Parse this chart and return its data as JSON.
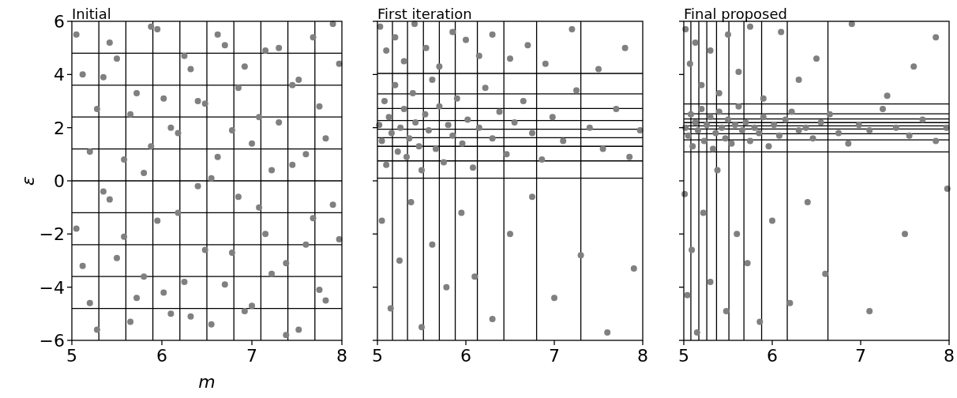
{
  "chart_data": [
    {
      "type": "scatter",
      "title": "Initial",
      "xlabel": "m",
      "ylabel": "ε",
      "color": "#808080",
      "marker": "circle",
      "grid": false,
      "xlim": [
        5,
        8
      ],
      "ylim": [
        -6,
        6
      ],
      "xticks": [
        5,
        6,
        7,
        8
      ],
      "yticks": [
        {
          "value": -6,
          "label": "−6"
        },
        {
          "value": -4,
          "label": "−4"
        },
        {
          "value": -2,
          "label": "−2"
        },
        0,
        2,
        4,
        6
      ],
      "x": [
        5.05,
        5.12,
        5.2,
        5.28,
        5.35,
        5.42,
        5.5,
        5.58,
        5.65,
        5.72,
        5.8,
        5.88,
        5.95,
        6.02,
        6.1,
        6.18,
        6.25,
        6.32,
        6.4,
        6.48,
        6.55,
        6.62,
        6.7,
        6.78,
        6.85,
        6.92,
        7.0,
        7.08,
        7.15,
        7.22,
        7.3,
        7.38,
        7.45,
        7.52,
        7.6,
        7.68,
        7.75,
        7.82,
        7.9,
        7.97,
        5.05,
        5.12,
        5.2,
        5.28,
        5.35,
        5.42,
        5.5,
        5.58,
        5.65,
        5.72,
        5.8,
        5.88,
        5.95,
        6.02,
        6.1,
        6.18,
        6.25,
        6.32,
        6.4,
        6.48,
        6.55,
        6.62,
        6.7,
        6.78,
        6.85,
        6.92,
        7.0,
        7.08,
        7.15,
        7.22,
        7.3,
        7.38,
        7.45,
        7.52,
        7.6,
        7.68,
        7.75,
        7.82,
        7.9,
        7.97
      ],
      "values": [
        5.5,
        -3.2,
        1.1,
        -5.6,
        3.9,
        -0.7,
        4.6,
        -2.1,
        2.5,
        -4.4,
        0.3,
        5.8,
        -1.5,
        3.1,
        -5.0,
        1.8,
        -3.8,
        4.2,
        -0.2,
        2.9,
        -5.4,
        0.9,
        5.1,
        -2.7,
        3.5,
        -4.9,
        1.4,
        -1.0,
        4.9,
        -3.5,
        2.2,
        -5.8,
        0.6,
        3.8,
        -2.4,
        5.4,
        -4.1,
        1.6,
        -0.9,
        4.4,
        -1.8,
        4.0,
        -4.6,
        2.7,
        -0.4,
        5.2,
        -2.9,
        0.8,
        -5.3,
        3.3,
        -3.6,
        1.3,
        5.7,
        -4.2,
        2.0,
        -1.2,
        4.7,
        -5.1,
        3.0,
        -2.6,
        0.1,
        5.5,
        -3.9,
        1.9,
        -0.6,
        4.3,
        -4.7,
        2.4,
        -2.0,
        0.4,
        5.0,
        -3.1,
        3.6,
        -5.6,
        1.0,
        -1.4,
        2.8,
        -4.5,
        5.9,
        -2.2
      ],
      "ref_lines": [
        {
          "axis": "x",
          "value": 5.3
        },
        {
          "axis": "x",
          "value": 5.6
        },
        {
          "axis": "x",
          "value": 5.9
        },
        {
          "axis": "x",
          "value": 6.2
        },
        {
          "axis": "x",
          "value": 6.5
        },
        {
          "axis": "x",
          "value": 6.8
        },
        {
          "axis": "x",
          "value": 7.1
        },
        {
          "axis": "x",
          "value": 7.4
        },
        {
          "axis": "x",
          "value": 7.7
        },
        {
          "axis": "y",
          "value": 4.8
        },
        {
          "axis": "y",
          "value": 3.6
        },
        {
          "axis": "y",
          "value": 2.4
        },
        {
          "axis": "y",
          "value": 1.2
        },
        {
          "axis": "y",
          "value": 0
        },
        {
          "axis": "y",
          "value": -1.2
        },
        {
          "axis": "y",
          "value": -2.4
        },
        {
          "axis": "y",
          "value": -3.6
        },
        {
          "axis": "y",
          "value": -4.8
        }
      ]
    },
    {
      "type": "scatter",
      "title": "First iteration",
      "color": "#808080",
      "marker": "circle",
      "grid": false,
      "tick_labels": "x",
      "xlim": [
        5,
        8
      ],
      "ylim": [
        -6,
        6
      ],
      "xticks": [
        5,
        6,
        7,
        8
      ],
      "yticks": [
        {
          "value": -6,
          "label": null
        },
        {
          "value": -4,
          "label": null
        },
        {
          "value": -2,
          "label": null
        },
        {
          "value": 0,
          "label": null
        },
        {
          "value": 2,
          "label": null
        },
        {
          "value": 4,
          "label": null
        },
        {
          "value": 6,
          "label": null
        }
      ],
      "x": [
        5.02,
        5.05,
        5.08,
        5.1,
        5.13,
        5.16,
        5.2,
        5.23,
        5.26,
        5.3,
        5.33,
        5.36,
        5.4,
        5.43,
        5.47,
        5.5,
        5.54,
        5.58,
        5.62,
        5.66,
        5.7,
        5.75,
        5.8,
        5.85,
        5.9,
        5.96,
        6.02,
        6.08,
        6.15,
        6.22,
        6.3,
        6.38,
        6.46,
        6.55,
        6.65,
        6.75,
        6.86,
        6.98,
        7.1,
        7.25,
        7.4,
        7.55,
        7.7,
        7.85,
        7.97,
        5.03,
        5.1,
        5.2,
        5.3,
        5.42,
        5.55,
        5.7,
        5.85,
        6.0,
        6.15,
        6.3,
        6.5,
        6.7,
        6.9,
        7.2,
        7.5,
        7.8,
        5.05,
        5.15,
        5.25,
        5.38,
        5.5,
        5.62,
        5.78,
        5.95,
        6.1,
        6.3,
        6.5,
        6.75,
        7.0,
        7.3,
        7.6,
        7.9
      ],
      "values": [
        2.1,
        1.5,
        3.0,
        0.6,
        2.4,
        1.8,
        3.6,
        1.1,
        2.0,
        2.7,
        0.9,
        1.6,
        3.3,
        2.2,
        1.3,
        0.4,
        2.5,
        1.9,
        3.8,
        1.2,
        2.8,
        0.7,
        2.1,
        1.7,
        3.1,
        1.4,
        2.3,
        0.5,
        2.0,
        3.5,
        1.6,
        2.6,
        1.0,
        2.2,
        3.0,
        1.8,
        0.8,
        2.4,
        1.5,
        3.4,
        2.0,
        1.2,
        2.7,
        0.9,
        1.9,
        5.8,
        4.9,
        5.4,
        4.5,
        5.9,
        5.0,
        4.3,
        5.6,
        5.3,
        4.7,
        5.5,
        4.6,
        5.1,
        4.4,
        5.7,
        4.2,
        5.0,
        -1.5,
        -4.8,
        -3.0,
        -0.8,
        -5.5,
        -2.4,
        -4.0,
        -1.2,
        -3.6,
        -5.2,
        -2.0,
        -0.6,
        -4.4,
        -2.8,
        -5.7,
        -3.3
      ],
      "ref_lines": [
        {
          "axis": "x",
          "value": 5.17
        },
        {
          "axis": "x",
          "value": 5.34
        },
        {
          "axis": "x",
          "value": 5.52
        },
        {
          "axis": "x",
          "value": 5.7
        },
        {
          "axis": "x",
          "value": 5.88
        },
        {
          "axis": "x",
          "value": 6.13
        },
        {
          "axis": "x",
          "value": 6.43
        },
        {
          "axis": "x",
          "value": 6.8
        },
        {
          "axis": "x",
          "value": 7.3
        },
        {
          "axis": "y",
          "value": 4.04
        },
        {
          "axis": "y",
          "value": 3.27
        },
        {
          "axis": "y",
          "value": 2.72
        },
        {
          "axis": "y",
          "value": 2.27
        },
        {
          "axis": "y",
          "value": 1.94
        },
        {
          "axis": "y",
          "value": 1.62
        },
        {
          "axis": "y",
          "value": 1.3
        },
        {
          "axis": "y",
          "value": 0.75
        },
        {
          "axis": "y",
          "value": 0.1
        }
      ]
    },
    {
      "type": "scatter",
      "title": "Final proposed",
      "color": "#808080",
      "marker": "circle",
      "grid": false,
      "tick_labels": "x",
      "xlim": [
        5,
        8
      ],
      "ylim": [
        -6,
        6
      ],
      "xticks": [
        5,
        6,
        7,
        8
      ],
      "yticks": [
        {
          "value": -6,
          "label": null
        },
        {
          "value": -4,
          "label": null
        },
        {
          "value": -2,
          "label": null
        },
        {
          "value": 0,
          "label": null
        },
        {
          "value": 2,
          "label": null
        },
        {
          "value": 4,
          "label": null
        },
        {
          "value": 6,
          "label": null
        }
      ],
      "x": [
        5.02,
        5.05,
        5.08,
        5.1,
        5.13,
        5.16,
        5.2,
        5.23,
        5.26,
        5.3,
        5.33,
        5.36,
        5.4,
        5.43,
        5.47,
        5.5,
        5.54,
        5.58,
        5.62,
        5.66,
        5.7,
        5.75,
        5.8,
        5.85,
        5.9,
        5.96,
        6.02,
        6.08,
        6.15,
        6.22,
        6.3,
        6.38,
        6.46,
        6.55,
        6.65,
        6.75,
        6.86,
        6.98,
        7.1,
        7.25,
        7.4,
        7.55,
        7.7,
        7.85,
        7.97,
        5.02,
        5.07,
        5.13,
        5.2,
        5.3,
        5.4,
        5.5,
        5.62,
        5.75,
        5.9,
        6.1,
        6.3,
        6.5,
        6.9,
        7.3,
        7.6,
        7.85,
        5.01,
        5.04,
        5.09,
        5.15,
        5.22,
        5.3,
        5.38,
        5.48,
        5.6,
        5.72,
        5.86,
        6.0,
        6.2,
        6.4,
        6.6,
        7.1,
        7.5,
        7.98
      ],
      "values": [
        2.0,
        1.7,
        2.5,
        1.3,
        2.2,
        1.9,
        2.7,
        1.5,
        2.1,
        2.4,
        1.2,
        1.8,
        2.6,
        2.0,
        1.6,
        2.3,
        1.4,
        2.1,
        2.8,
        1.9,
        2.2,
        1.5,
        2.0,
        1.8,
        2.4,
        1.3,
        2.1,
        1.7,
        2.3,
        2.6,
        1.9,
        2.0,
        1.6,
        2.2,
        2.5,
        1.8,
        1.4,
        2.1,
        1.9,
        2.7,
        2.0,
        1.7,
        2.3,
        1.5,
        2.0,
        5.7,
        4.4,
        5.2,
        3.6,
        4.9,
        3.3,
        5.5,
        4.1,
        5.8,
        3.1,
        5.6,
        3.8,
        4.6,
        5.9,
        3.2,
        4.3,
        5.4,
        -0.5,
        -4.3,
        -2.6,
        -5.7,
        -1.2,
        -3.8,
        0.4,
        -4.9,
        -2.0,
        -3.1,
        -5.3,
        -1.5,
        -4.6,
        -0.8,
        -3.5,
        -4.9,
        -2.0,
        -0.3
      ],
      "ref_lines": [
        {
          "axis": "x",
          "value": 5.08
        },
        {
          "axis": "x",
          "value": 5.17
        },
        {
          "axis": "x",
          "value": 5.26
        },
        {
          "axis": "x",
          "value": 5.37
        },
        {
          "axis": "x",
          "value": 5.51
        },
        {
          "axis": "x",
          "value": 5.68
        },
        {
          "axis": "x",
          "value": 5.88
        },
        {
          "axis": "x",
          "value": 6.17
        },
        {
          "axis": "x",
          "value": 6.63
        },
        {
          "axis": "y",
          "value": 2.89
        },
        {
          "axis": "y",
          "value": 2.52
        },
        {
          "axis": "y",
          "value": 2.33
        },
        {
          "axis": "y",
          "value": 2.19
        },
        {
          "axis": "y",
          "value": 2.07
        },
        {
          "axis": "y",
          "value": 1.95
        },
        {
          "axis": "y",
          "value": 1.77
        },
        {
          "axis": "y",
          "value": 1.54
        },
        {
          "axis": "y",
          "value": 1.09
        }
      ]
    }
  ]
}
